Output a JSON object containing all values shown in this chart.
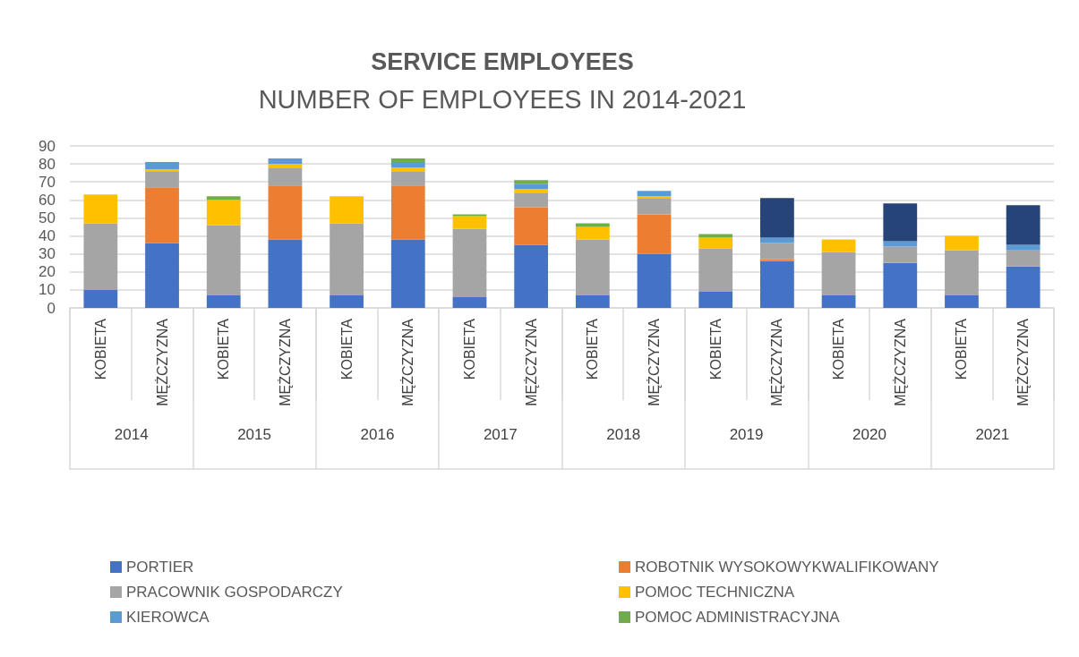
{
  "chart_data": {
    "type": "bar",
    "stacked": true,
    "title": "SERVICE EMPLOYEES",
    "subtitle": "NUMBER OF EMPLOYEES IN 2014-2021",
    "categories": [
      "KOBIETA",
      "MĘŻCZYZNA",
      "KOBIETA",
      "MĘŻCZYZNA",
      "KOBIETA",
      "MĘŻCZYZNA",
      "KOBIETA",
      "MĘŻCZYZNA",
      "KOBIETA",
      "MĘŻCZYZNA",
      "KOBIETA",
      "MĘŻCZYZNA",
      "KOBIETA",
      "MĘŻCZYZNA",
      "KOBIETA",
      "MĘŻCZYZNA"
    ],
    "annotations": [
      "2014",
      "2015",
      "2016",
      "2017",
      "2018",
      "2019",
      "2020",
      "2021"
    ],
    "series": [
      {
        "name": "PORTIER",
        "color": "#4472c4",
        "values": [
          10,
          36,
          7,
          38,
          7,
          38,
          6,
          35,
          7,
          30,
          9,
          26,
          7,
          25,
          7,
          23
        ]
      },
      {
        "name": "ROBOTNIK WYSOKOWYKWALIFIKOWANY",
        "color": "#ed7d31",
        "values": [
          null,
          31,
          null,
          30,
          null,
          30,
          null,
          21,
          null,
          22,
          null,
          1,
          null,
          null,
          null,
          null
        ]
      },
      {
        "name": "PRACOWNIK GOSPODARCZY",
        "color": "#a5a5a5",
        "values": [
          37,
          9,
          39,
          10,
          40,
          8,
          38,
          8,
          31,
          9,
          24,
          9,
          24,
          9,
          25,
          9
        ]
      },
      {
        "name": "POMOC TECHNICZNA",
        "color": "#ffc000",
        "values": [
          16,
          1,
          14,
          2,
          15,
          2,
          7,
          2,
          7,
          1,
          6,
          null,
          7,
          null,
          8,
          null
        ]
      },
      {
        "name": "KIEROWCA",
        "color": "#5b9bd5",
        "values": [
          null,
          4,
          null,
          3,
          null,
          3,
          null,
          3,
          null,
          3,
          null,
          3,
          null,
          3,
          null,
          3
        ]
      },
      {
        "name": "POMOC ADMINISTRACYJNA",
        "color": "#70ad47",
        "values": [
          null,
          null,
          2,
          null,
          null,
          2,
          1,
          2,
          2,
          null,
          2,
          null,
          null,
          null,
          null,
          null
        ]
      },
      {
        "color": "#264478",
        "values": [
          null,
          null,
          null,
          null,
          null,
          null,
          null,
          null,
          null,
          null,
          null,
          22,
          null,
          21,
          null,
          22
        ]
      }
    ],
    "ylim": [
      0,
      90
    ],
    "yticks": [
      0,
      10,
      20,
      30,
      40,
      50,
      60,
      70,
      80,
      90
    ],
    "grid": "y",
    "legend": "bottom"
  }
}
